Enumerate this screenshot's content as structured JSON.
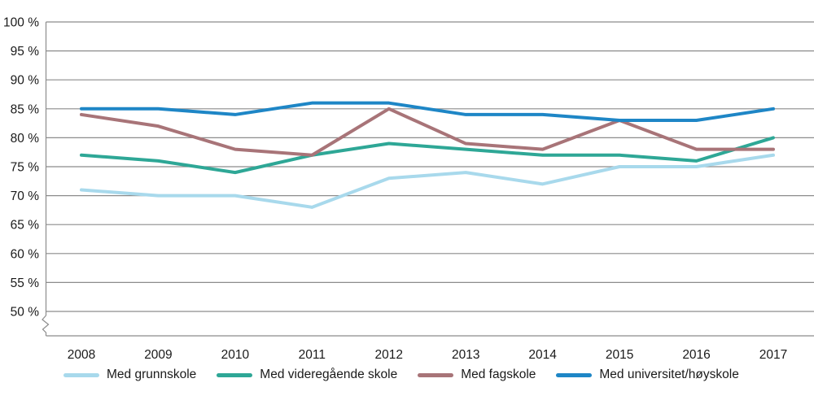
{
  "chart_data": {
    "type": "line",
    "x": [
      2008,
      2009,
      2010,
      2011,
      2012,
      2013,
      2014,
      2015,
      2016,
      2017
    ],
    "series": [
      {
        "name": "Med grunnskole",
        "color": "#a8d9ec",
        "values": [
          71,
          70,
          70,
          68,
          73,
          74,
          72,
          75,
          75,
          77
        ]
      },
      {
        "name": "Med videregående skole",
        "color": "#2ea796",
        "values": [
          77,
          76,
          74,
          77,
          79,
          78,
          77,
          77,
          76,
          80
        ]
      },
      {
        "name": "Med fagskole",
        "color": "#a87478",
        "values": [
          84,
          82,
          78,
          77,
          85,
          79,
          78,
          83,
          78,
          78
        ]
      },
      {
        "name": "Med universitet/høyskole",
        "color": "#1e86c6",
        "values": [
          85,
          85,
          84,
          86,
          86,
          84,
          84,
          83,
          83,
          85
        ]
      }
    ],
    "yticks": [
      100,
      95,
      90,
      85,
      80,
      75,
      70,
      65,
      60,
      55,
      50
    ],
    "ytick_suffix": " %",
    "ylim": [
      50,
      100
    ],
    "axis_break": true,
    "grid": true,
    "legend_position": "bottom",
    "grid_color": "#8c8c8c",
    "text_color": "#1a1a1a",
    "line_width": 4
  }
}
